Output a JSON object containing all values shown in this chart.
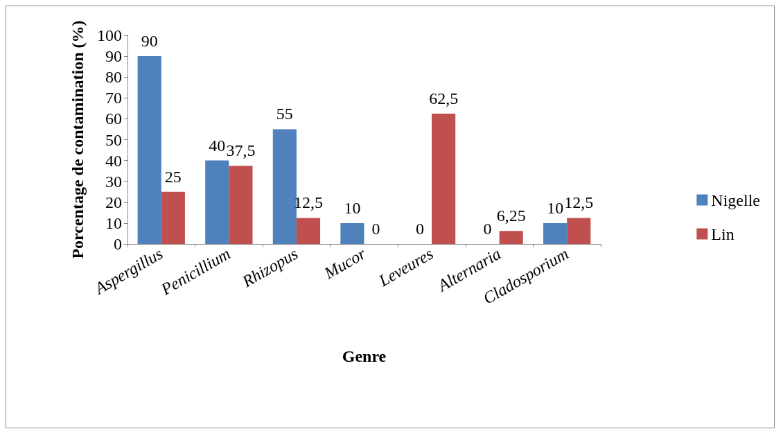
{
  "chart_data": {
    "type": "bar",
    "xlabel": "Genre",
    "ylabel": "Porcentage de contamination (%)",
    "categories": [
      "Aspergillus",
      "Penicillium",
      "Rhizopus",
      "Mucor",
      "Leveures",
      "Alternaria",
      "Cladosporium"
    ],
    "series": [
      {
        "name": "Nigelle",
        "color": "#4f81bd",
        "values": [
          90,
          40,
          55,
          10,
          0,
          0,
          10
        ],
        "value_labels": [
          "90",
          "40",
          "55",
          "10",
          "0",
          "0",
          "10"
        ]
      },
      {
        "name": "Lin",
        "color": "#c0504d",
        "values": [
          25,
          37.5,
          12.5,
          0,
          62.5,
          6.25,
          12.5
        ],
        "value_labels": [
          "25",
          "37,5",
          "12,5",
          "0",
          "62,5",
          "6,25",
          "12,5"
        ]
      }
    ],
    "ylim": [
      0,
      100
    ],
    "yticks": [
      0,
      10,
      20,
      30,
      40,
      50,
      60,
      70,
      80,
      90,
      100
    ],
    "grid": false,
    "legend": "right"
  }
}
